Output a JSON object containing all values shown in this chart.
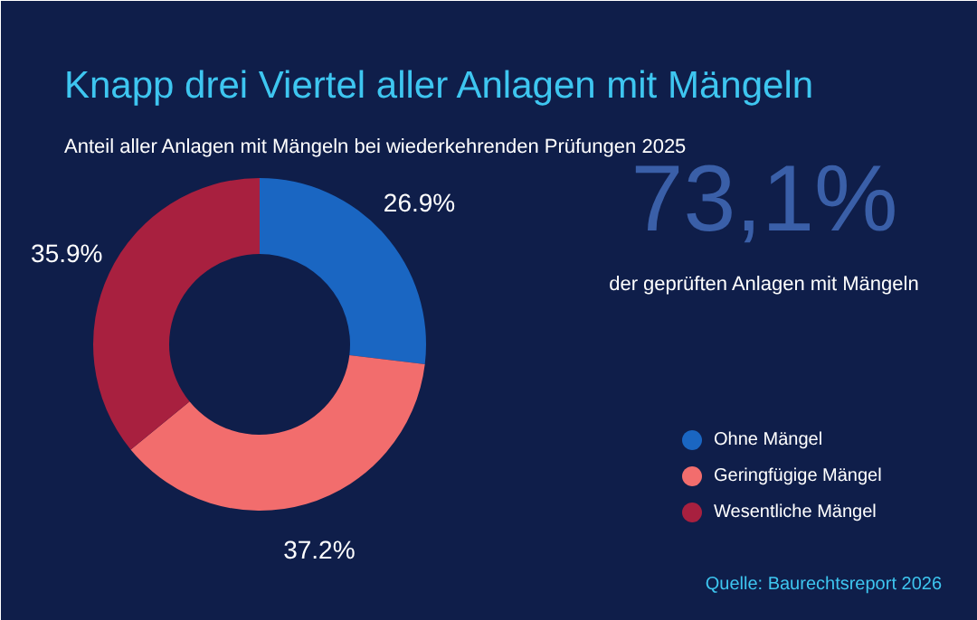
{
  "chart_data": {
    "type": "donut",
    "title": "Knapp drei Viertel aller Anlagen mit Mängeln",
    "subtitle": "Anteil aller Anlagen mit Mängeln bei wiederkehrenden Prüfungen 2025",
    "categories": [
      "Ohne Mängel",
      "Geringfügige Mängel",
      "Wesentliche Mängel"
    ],
    "values": [
      26.9,
      37.2,
      35.9
    ],
    "colors": [
      "#1a66c2",
      "#f26d6d",
      "#a8203f"
    ],
    "value_labels": [
      "26.9%",
      "37.2%",
      "35.9%"
    ],
    "legend": "bottom right",
    "annotations": [
      "73,1%",
      "der geprüften Anlagen mit Mängeln",
      "Quelle: Baurechtsreport 2026"
    ]
  }
}
